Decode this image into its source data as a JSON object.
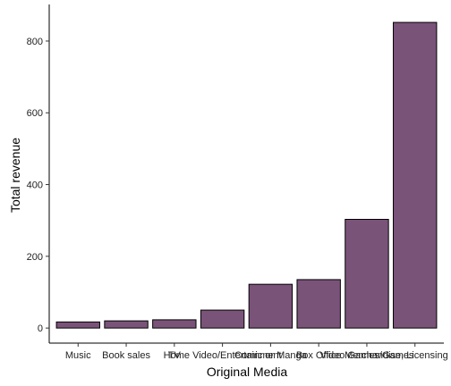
{
  "chart_data": {
    "type": "bar",
    "x_label": "Original Media",
    "y_label": "Total revenue",
    "categories": [
      "Music",
      "Book sales",
      "TV",
      "Home Video/Entertainment",
      "Comic or Manga",
      "Box Office",
      "Video Games/Games",
      "Merchandise, Licensing & Retail"
    ],
    "values": [
      17,
      20,
      23,
      50,
      122,
      135,
      303,
      852
    ],
    "color": "#7a5379",
    "ylim": [
      -42,
      902
    ],
    "yticks": [
      0,
      200,
      400,
      600,
      800
    ],
    "grid": false
  }
}
